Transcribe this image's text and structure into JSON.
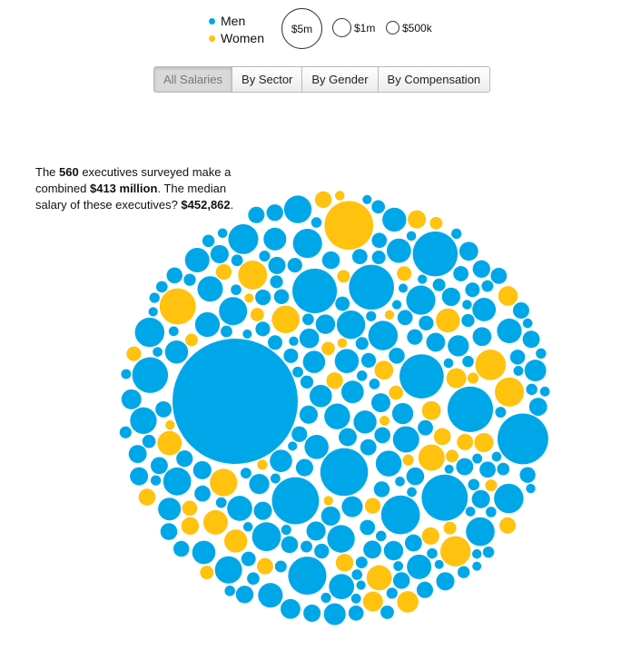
{
  "legend": {
    "men_label": "Men",
    "women_label": "Women",
    "men_color": "#00a7e8",
    "women_color": "#ffc20f"
  },
  "scale": {
    "items": [
      {
        "label": "$5m",
        "value": 5000000
      },
      {
        "label": "$1m",
        "value": 1000000
      },
      {
        "label": "$500k",
        "value": 500000
      }
    ]
  },
  "tabs": [
    {
      "label": "All Salaries",
      "active": true
    },
    {
      "label": "By Sector",
      "active": false
    },
    {
      "label": "By Gender",
      "active": false
    },
    {
      "label": "By Compensation",
      "active": false
    }
  ],
  "summary": {
    "p1": "The ",
    "count": "560",
    "p2": " executives surveyed make a combined ",
    "total": "$413 million",
    "p3": ". The median salary of these executives? ",
    "median": "$452,862",
    "p4": "."
  },
  "chart_data": {
    "type": "bubble",
    "series": [
      {
        "name": "Men",
        "color": "#00a7e8"
      },
      {
        "name": "Women",
        "color": "#ffc20f"
      }
    ],
    "total_count": 560,
    "total_salary": 413000000,
    "median_salary": 452862,
    "largest_bubble_series": "Men"
  }
}
